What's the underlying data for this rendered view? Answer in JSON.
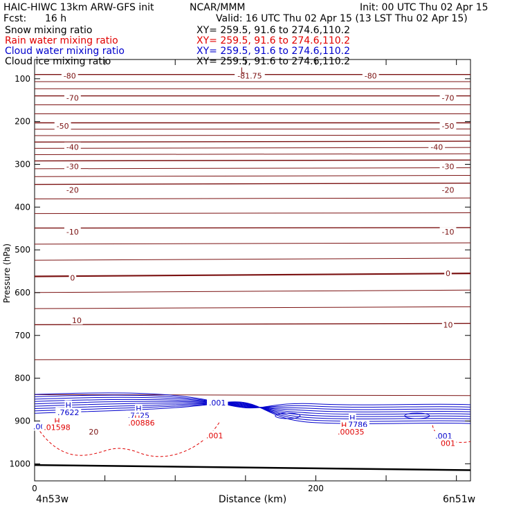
{
  "header": {
    "model": "HAIC-HIWC 13km ARW-GFS init",
    "org": "NCAR/MMM",
    "init": "Init: 00 UTC Thu 02 Apr 15",
    "fcst_label": "Fcst:",
    "fcst_value": "16 h",
    "valid": "Valid: 16 UTC Thu 02 Apr 15 (13 LST Thu 02 Apr 15)"
  },
  "fields": [
    {
      "name": "Snow mixing ratio",
      "xy": "XY= 259.5, 91.6 to 274.6,110.2",
      "color": "#000000"
    },
    {
      "name": "Rain water mixing ratio",
      "xy": "XY= 259.5, 91.6 to 274.6,110.2",
      "color": "#e00000"
    },
    {
      "name": "Cloud water mixing ratio",
      "xy": "XY= 259.5, 91.6 to 274.6,110.2",
      "color": "#0000cc"
    },
    {
      "name": "Cloud ice mixing ratio",
      "xy": "XY= 259.5, 91.6 to 274.6,110.2",
      "color": "#000000"
    }
  ],
  "colors": {
    "temperature": "#7a1010",
    "cloud_water": "#0000cc",
    "rain": "#e00000",
    "ground": "#000000"
  },
  "chart_data": {
    "type": "contour",
    "xlabel": "Distance (km)",
    "ylabel": "Pressure (hPa)",
    "xlim": [
      0,
      310
    ],
    "ylim": [
      1040,
      55
    ],
    "x_ticks": [
      0,
      200
    ],
    "y_ticks": [
      100,
      200,
      300,
      400,
      500,
      600,
      700,
      800,
      900,
      1000
    ],
    "x_left_label": "4n53w",
    "x_right_label": "6n51w",
    "temperature_isotherms": [
      {
        "value": -80,
        "p_left": 90,
        "p_right": 90
      },
      {
        "value": -70,
        "p_left": 140,
        "p_right": 140
      },
      {
        "value": -50,
        "p_left": 203,
        "p_right": 203
      },
      {
        "value": -40,
        "p_left": 248,
        "p_right": 246
      },
      {
        "value": -30,
        "p_left": 292,
        "p_right": 290
      },
      {
        "value": -20,
        "p_left": 347,
        "p_right": 344
      },
      {
        "value": -10,
        "p_left": 449,
        "p_right": 448
      },
      {
        "value": 0,
        "p_left": 562,
        "p_right": 555
      },
      {
        "value": 10,
        "p_left": 675,
        "p_right": 672
      },
      {
        "value": 20,
        "p_left": 920,
        "p_right": 925
      }
    ],
    "temperature_labels": [
      {
        "text": "-80",
        "x": 25,
        "p": 93
      },
      {
        "text": "-81.75",
        "x": 153,
        "p": 93
      },
      {
        "text": "-80",
        "x": 239,
        "p": 93
      },
      {
        "text": "-70",
        "x": 27,
        "p": 145
      },
      {
        "text": "-70",
        "x": 294,
        "p": 145
      },
      {
        "text": "-50",
        "x": 20,
        "p": 210
      },
      {
        "text": "-50",
        "x": 294,
        "p": 210
      },
      {
        "text": "-40",
        "x": 27,
        "p": 260
      },
      {
        "text": "-40",
        "x": 286,
        "p": 260
      },
      {
        "text": "-30",
        "x": 27,
        "p": 305
      },
      {
        "text": "-30",
        "x": 294,
        "p": 305
      },
      {
        "text": "-20",
        "x": 27,
        "p": 360
      },
      {
        "text": "-20",
        "x": 294,
        "p": 360
      },
      {
        "text": "-10",
        "x": 27,
        "p": 458
      },
      {
        "text": "-10",
        "x": 294,
        "p": 458
      },
      {
        "text": "0",
        "x": 27,
        "p": 565
      },
      {
        "text": "0",
        "x": 294,
        "p": 555
      },
      {
        "text": "10",
        "x": 30,
        "p": 665
      },
      {
        "text": "10",
        "x": 294,
        "p": 675
      },
      {
        "text": "20",
        "x": 42,
        "p": 925
      },
      {
        "text": "20",
        "x": 294,
        "p": 950
      }
    ],
    "minimum_marker": {
      "text": "L",
      "x": 148,
      "p": 80
    },
    "cloud_water_labels": [
      {
        "text": "H",
        "x": 24,
        "p": 863,
        "kind": "marker"
      },
      {
        "text": ".7622",
        "x": 24,
        "p": 880,
        "kind": "value"
      },
      {
        "text": "H",
        "x": 74,
        "p": 871,
        "kind": "marker"
      },
      {
        "text": ".7625",
        "x": 74,
        "p": 887,
        "kind": "value"
      },
      {
        "text": ".001",
        "x": 130,
        "p": 857,
        "kind": "value"
      },
      {
        "text": ".001",
        "x": 5,
        "p": 913,
        "kind": "value"
      },
      {
        "text": "H",
        "x": 226,
        "p": 893,
        "kind": "marker"
      },
      {
        "text": ".7786",
        "x": 229,
        "p": 908,
        "kind": "value"
      },
      {
        "text": ".001",
        "x": 291,
        "p": 935,
        "kind": "value"
      }
    ],
    "rain_labels": [
      {
        "text": "H",
        "x": 16,
        "p": 900,
        "kind": "marker"
      },
      {
        "text": ".01598",
        "x": 16,
        "p": 915,
        "kind": "value"
      },
      {
        "text": "H",
        "x": 73,
        "p": 894,
        "kind": "marker"
      },
      {
        "text": ".00886",
        "x": 76,
        "p": 904,
        "kind": "value"
      },
      {
        "text": ".001",
        "x": 128,
        "p": 934,
        "kind": "value"
      },
      {
        "text": "H",
        "x": 220,
        "p": 910,
        "kind": "marker"
      },
      {
        "text": ".00035",
        "x": 225,
        "p": 925,
        "kind": "value"
      },
      {
        "text": "001",
        "x": 294,
        "p": 952,
        "kind": "value"
      }
    ],
    "ground_pressure_left": 1003,
    "ground_pressure_right": 1015
  }
}
